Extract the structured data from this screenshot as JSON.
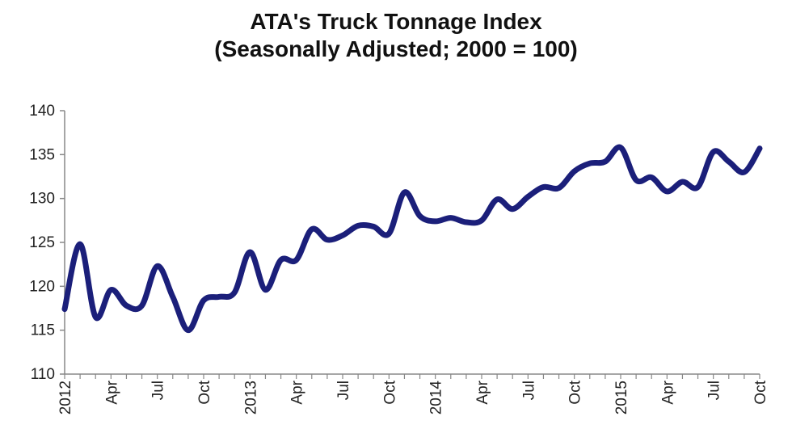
{
  "chart_data": {
    "type": "line",
    "title": "ATA's Truck Tonnage Index",
    "subtitle": "(Seasonally Adjusted; 2000 = 100)",
    "xlabel": "",
    "ylabel": "",
    "ylim": [
      110,
      140
    ],
    "yticks": [
      110,
      115,
      120,
      125,
      130,
      135,
      140
    ],
    "xtick_labels": [
      "2012",
      "Apr",
      "Jul",
      "Oct",
      "2013",
      "Apr",
      "Jul",
      "Oct",
      "2014",
      "Apr",
      "Jul",
      "Oct",
      "2015",
      "Apr",
      "Jul",
      "Oct"
    ],
    "grid": false,
    "legend": "none",
    "line_color": "#1b1f7a",
    "x": [
      "2012-01",
      "2012-02",
      "2012-03",
      "2012-04",
      "2012-05",
      "2012-06",
      "2012-07",
      "2012-08",
      "2012-09",
      "2012-10",
      "2012-11",
      "2012-12",
      "2013-01",
      "2013-02",
      "2013-03",
      "2013-04",
      "2013-05",
      "2013-06",
      "2013-07",
      "2013-08",
      "2013-09",
      "2013-10",
      "2013-11",
      "2013-12",
      "2014-01",
      "2014-02",
      "2014-03",
      "2014-04",
      "2014-05",
      "2014-06",
      "2014-07",
      "2014-08",
      "2014-09",
      "2014-10",
      "2014-11",
      "2014-12",
      "2015-01",
      "2015-02",
      "2015-03",
      "2015-04",
      "2015-05",
      "2015-06",
      "2015-07",
      "2015-08",
      "2015-09",
      "2015-10"
    ],
    "series": [
      {
        "values": [
          117.4,
          124.8,
          116.5,
          119.6,
          117.8,
          117.8,
          122.3,
          118.8,
          115.0,
          118.4,
          118.8,
          119.3,
          123.9,
          119.6,
          123.0,
          123.0,
          126.5,
          125.3,
          125.8,
          126.9,
          126.8,
          126.0,
          130.7,
          128.0,
          127.4,
          127.8,
          127.3,
          127.5,
          129.9,
          128.8,
          130.2,
          131.3,
          131.2,
          133.1,
          134.0,
          134.2,
          135.8,
          132.1,
          132.4,
          130.8,
          131.9,
          131.3,
          135.3,
          134.2,
          133.0,
          135.7
        ]
      }
    ]
  }
}
